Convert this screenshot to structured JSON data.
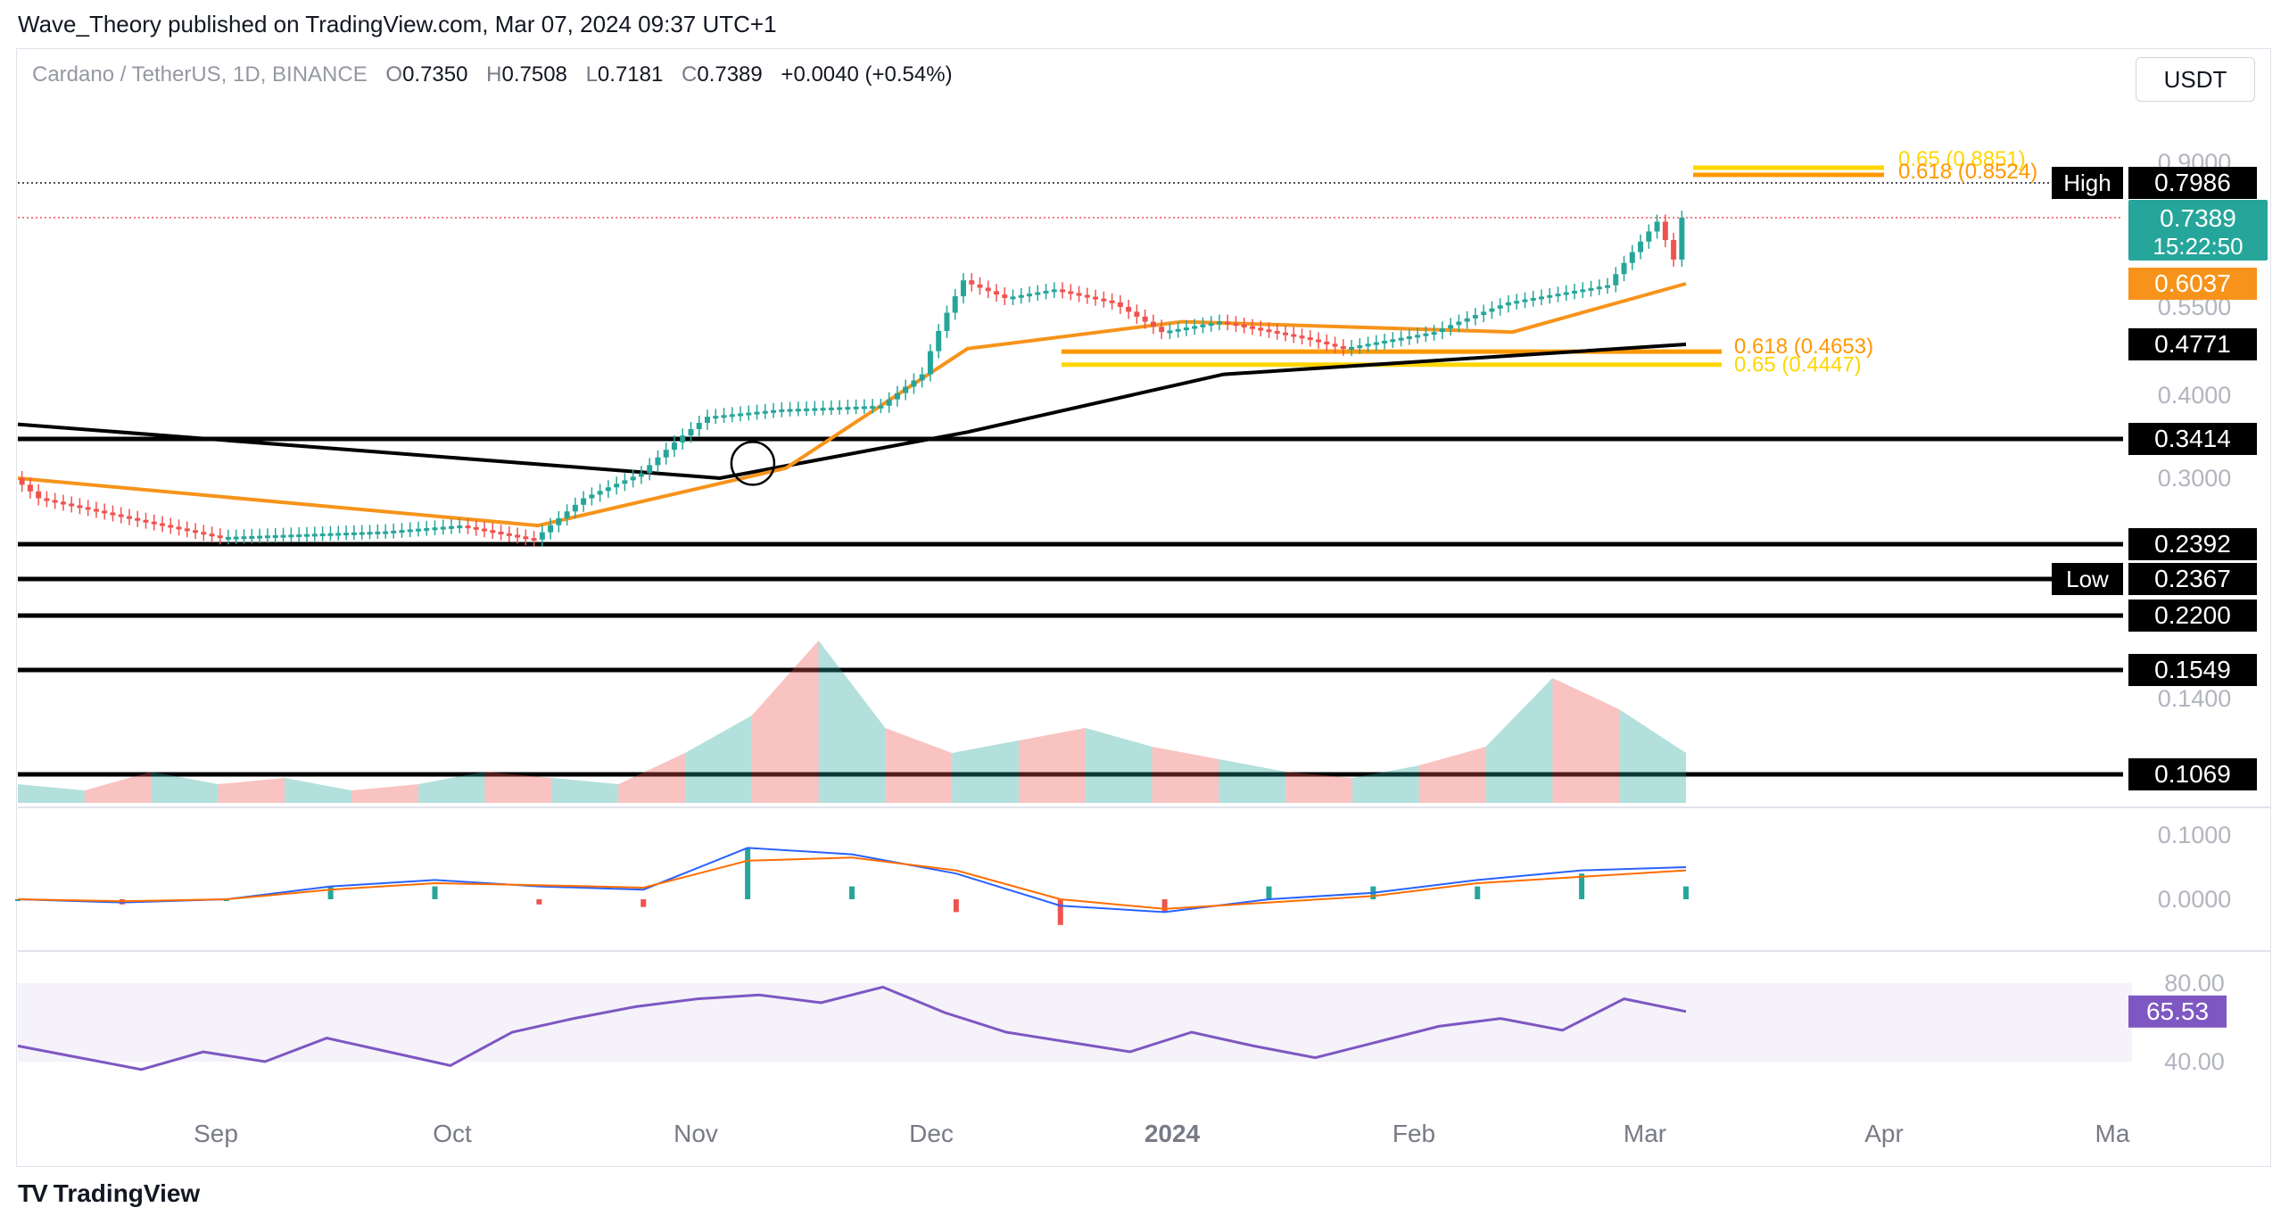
{
  "header": {
    "published_by": "Wave_Theory published on TradingView.com, Mar 07, 2024 09:37 UTC+1"
  },
  "legend": {
    "symbol": "Cardano / TetherUS, 1D, BINANCE",
    "open_label": "O",
    "open": "0.7350",
    "high_label": "H",
    "high": "0.7508",
    "low_label": "L",
    "low": "0.7181",
    "close_label": "C",
    "close": "0.7389",
    "change": "+0.0040 (+0.54%)"
  },
  "currency_button": "USDT",
  "footer": {
    "logo": "TV",
    "brand": "TradingView"
  },
  "colors": {
    "bull": "#26a69a",
    "bear": "#ef5350",
    "ema50": "#f7931a",
    "ema200": "#000000",
    "fib": "#ffd600",
    "rsi": "#7e57c2",
    "macd": "#2962ff",
    "signal": "#ff6d00"
  },
  "chart_data": {
    "type": "candlestick",
    "symbol": "ADAUSDT",
    "interval": "1D",
    "x_tick_labels": [
      "Sep",
      "Oct",
      "Nov",
      "Dec",
      "2024",
      "Feb",
      "Mar",
      "Apr",
      "Ma"
    ],
    "y_tick_labels": [
      "0.9000",
      "0.5500",
      "0.4000",
      "0.3000",
      "0.1400"
    ],
    "price_range_visible": [
      0.09,
      0.95
    ],
    "close_series": [
      {
        "date": "2023-08-17",
        "close": 0.3
      },
      {
        "date": "2023-08-20",
        "close": 0.28
      },
      {
        "date": "2023-09-01",
        "close": 0.26
      },
      {
        "date": "2023-09-11",
        "close": 0.245
      },
      {
        "date": "2023-10-01",
        "close": 0.25
      },
      {
        "date": "2023-10-10",
        "close": 0.255
      },
      {
        "date": "2023-10-19",
        "close": 0.243
      },
      {
        "date": "2023-10-25",
        "close": 0.28
      },
      {
        "date": "2023-11-01",
        "close": 0.305
      },
      {
        "date": "2023-11-09",
        "close": 0.37
      },
      {
        "date": "2023-11-18",
        "close": 0.38
      },
      {
        "date": "2023-11-30",
        "close": 0.385
      },
      {
        "date": "2023-12-05",
        "close": 0.43
      },
      {
        "date": "2023-12-10",
        "close": 0.61
      },
      {
        "date": "2023-12-15",
        "close": 0.57
      },
      {
        "date": "2023-12-21",
        "close": 0.59
      },
      {
        "date": "2023-12-28",
        "close": 0.56
      },
      {
        "date": "2024-01-03",
        "close": 0.5
      },
      {
        "date": "2024-01-10",
        "close": 0.52
      },
      {
        "date": "2024-01-20",
        "close": 0.49
      },
      {
        "date": "2024-01-25",
        "close": 0.47
      },
      {
        "date": "2024-02-05",
        "close": 0.5
      },
      {
        "date": "2024-02-14",
        "close": 0.56
      },
      {
        "date": "2024-02-26",
        "close": 0.6
      },
      {
        "date": "2024-03-03",
        "close": 0.73
      },
      {
        "date": "2024-03-05",
        "close": 0.65
      },
      {
        "date": "2024-03-06",
        "close": 0.7389
      }
    ],
    "ema50": [
      {
        "date": "2023-08-17",
        "value": 0.3
      },
      {
        "date": "2023-10-19",
        "value": 0.255
      },
      {
        "date": "2023-11-18",
        "value": 0.31
      },
      {
        "date": "2023-12-10",
        "value": 0.47
      },
      {
        "date": "2024-01-05",
        "value": 0.52
      },
      {
        "date": "2024-02-14",
        "value": 0.5
      },
      {
        "date": "2024-03-06",
        "value": 0.6037
      }
    ],
    "ema200": [
      {
        "date": "2023-08-17",
        "value": 0.36
      },
      {
        "date": "2023-11-10",
        "value": 0.3
      },
      {
        "date": "2023-12-10",
        "value": 0.35
      },
      {
        "date": "2024-01-10",
        "value": 0.43
      },
      {
        "date": "2024-03-06",
        "value": 0.4771
      }
    ],
    "horizontal_levels": [
      {
        "label": "High",
        "value": 0.7986
      },
      {
        "value": 0.3414
      },
      {
        "value": 0.2392
      },
      {
        "label": "Low",
        "value": 0.2367
      },
      {
        "value": 0.22
      },
      {
        "value": 0.1549
      },
      {
        "value": 0.1069
      }
    ],
    "price_labels": [
      {
        "value": "0.7389",
        "sub": "15:22:50"
      },
      {
        "value": "0.6037"
      },
      {
        "value": "0.4771"
      },
      {
        "value": "0.3414"
      },
      {
        "value": "0.2392"
      },
      {
        "value": "0.2367",
        "tag": "Low"
      },
      {
        "value": "0.2200"
      },
      {
        "value": "0.1549"
      },
      {
        "value": "0.1069"
      },
      {
        "value": "0.7986",
        "tag": "High"
      }
    ],
    "fib_levels": [
      {
        "label": "0.618 (0.8524)",
        "value": 0.8524
      },
      {
        "label": "0.65 (0.8851)",
        "value": 0.8851
      },
      {
        "label": "0.618 (0.4653)",
        "value": 0.4653
      },
      {
        "label": "0.65 (0.4447)",
        "value": 0.4447
      }
    ],
    "macd": {
      "y_tick_labels": [
        "0.1000",
        "0.0000"
      ],
      "macd_line": [
        0.0,
        -0.005,
        0.0,
        0.02,
        0.03,
        0.02,
        0.015,
        0.08,
        0.07,
        0.04,
        -0.01,
        -0.02,
        0.0,
        0.01,
        0.03,
        0.045,
        0.05
      ],
      "signal_line": [
        0.0,
        -0.003,
        0.0,
        0.015,
        0.025,
        0.022,
        0.018,
        0.06,
        0.065,
        0.045,
        0.0,
        -0.015,
        -0.005,
        0.005,
        0.025,
        0.035,
        0.045
      ]
    },
    "rsi": {
      "value": "65.53",
      "y_tick_labels": [
        "80.00",
        "40.00"
      ],
      "band": [
        30,
        70
      ],
      "series": [
        48,
        42,
        36,
        45,
        40,
        52,
        45,
        38,
        55,
        62,
        68,
        72,
        74,
        70,
        78,
        65,
        55,
        50,
        45,
        55,
        48,
        42,
        50,
        58,
        62,
        56,
        72,
        65.53
      ]
    },
    "volume_series": [
      3,
      2,
      5,
      3,
      4,
      2,
      3,
      5,
      4,
      3,
      8,
      14,
      26,
      12,
      8,
      10,
      12,
      9,
      7,
      5,
      4,
      6,
      9,
      20,
      15,
      8
    ]
  }
}
